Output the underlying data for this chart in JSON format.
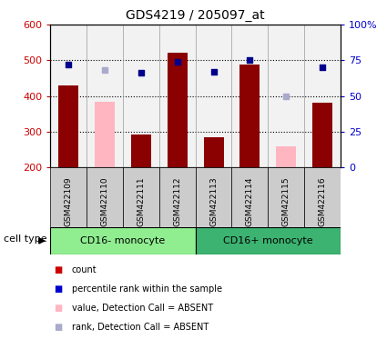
{
  "title": "GDS4219 / 205097_at",
  "samples": [
    "GSM422109",
    "GSM422110",
    "GSM422111",
    "GSM422112",
    "GSM422113",
    "GSM422114",
    "GSM422115",
    "GSM422116"
  ],
  "bar_values": [
    430,
    null,
    292,
    522,
    284,
    488,
    null,
    380
  ],
  "bar_absent_values": [
    null,
    384,
    null,
    null,
    null,
    null,
    260,
    null
  ],
  "bar_color_present": "#8B0000",
  "bar_color_absent": "#FFB6C1",
  "dot_values_pct": [
    72,
    null,
    66,
    74,
    67,
    75,
    null,
    70
  ],
  "dot_absent_pct": [
    null,
    68,
    null,
    null,
    null,
    null,
    50,
    null
  ],
  "dot_color_present": "#00008B",
  "dot_color_absent": "#AAAACC",
  "ylim_left": [
    200,
    600
  ],
  "ylim_right": [
    0,
    100
  ],
  "yticks_left": [
    200,
    300,
    400,
    500,
    600
  ],
  "ytick_labels_left": [
    "200",
    "300",
    "400",
    "500",
    "600"
  ],
  "yticks_right": [
    0,
    25,
    50,
    75,
    100
  ],
  "ytick_labels_right": [
    "0",
    "25",
    "50",
    "75",
    "100%"
  ],
  "groups": [
    {
      "label": "CD16- monocyte",
      "start": 0,
      "end": 4,
      "color": "#90EE90"
    },
    {
      "label": "CD16+ monocyte",
      "start": 4,
      "end": 8,
      "color": "#3CB371"
    }
  ],
  "cell_type_label": "cell type",
  "legend_items": [
    {
      "label": "count",
      "color": "#CC0000"
    },
    {
      "label": "percentile rank within the sample",
      "color": "#0000CC"
    },
    {
      "label": "value, Detection Call = ABSENT",
      "color": "#FFB6C1"
    },
    {
      "label": "rank, Detection Call = ABSENT",
      "color": "#AAAACC"
    }
  ],
  "bar_width": 0.55,
  "background_color": "#FFFFFF",
  "axis_color_left": "#CC0000",
  "axis_color_right": "#0000CC",
  "col_bg_color": "#CCCCCC",
  "sample_box_color": "#CCCCCC"
}
